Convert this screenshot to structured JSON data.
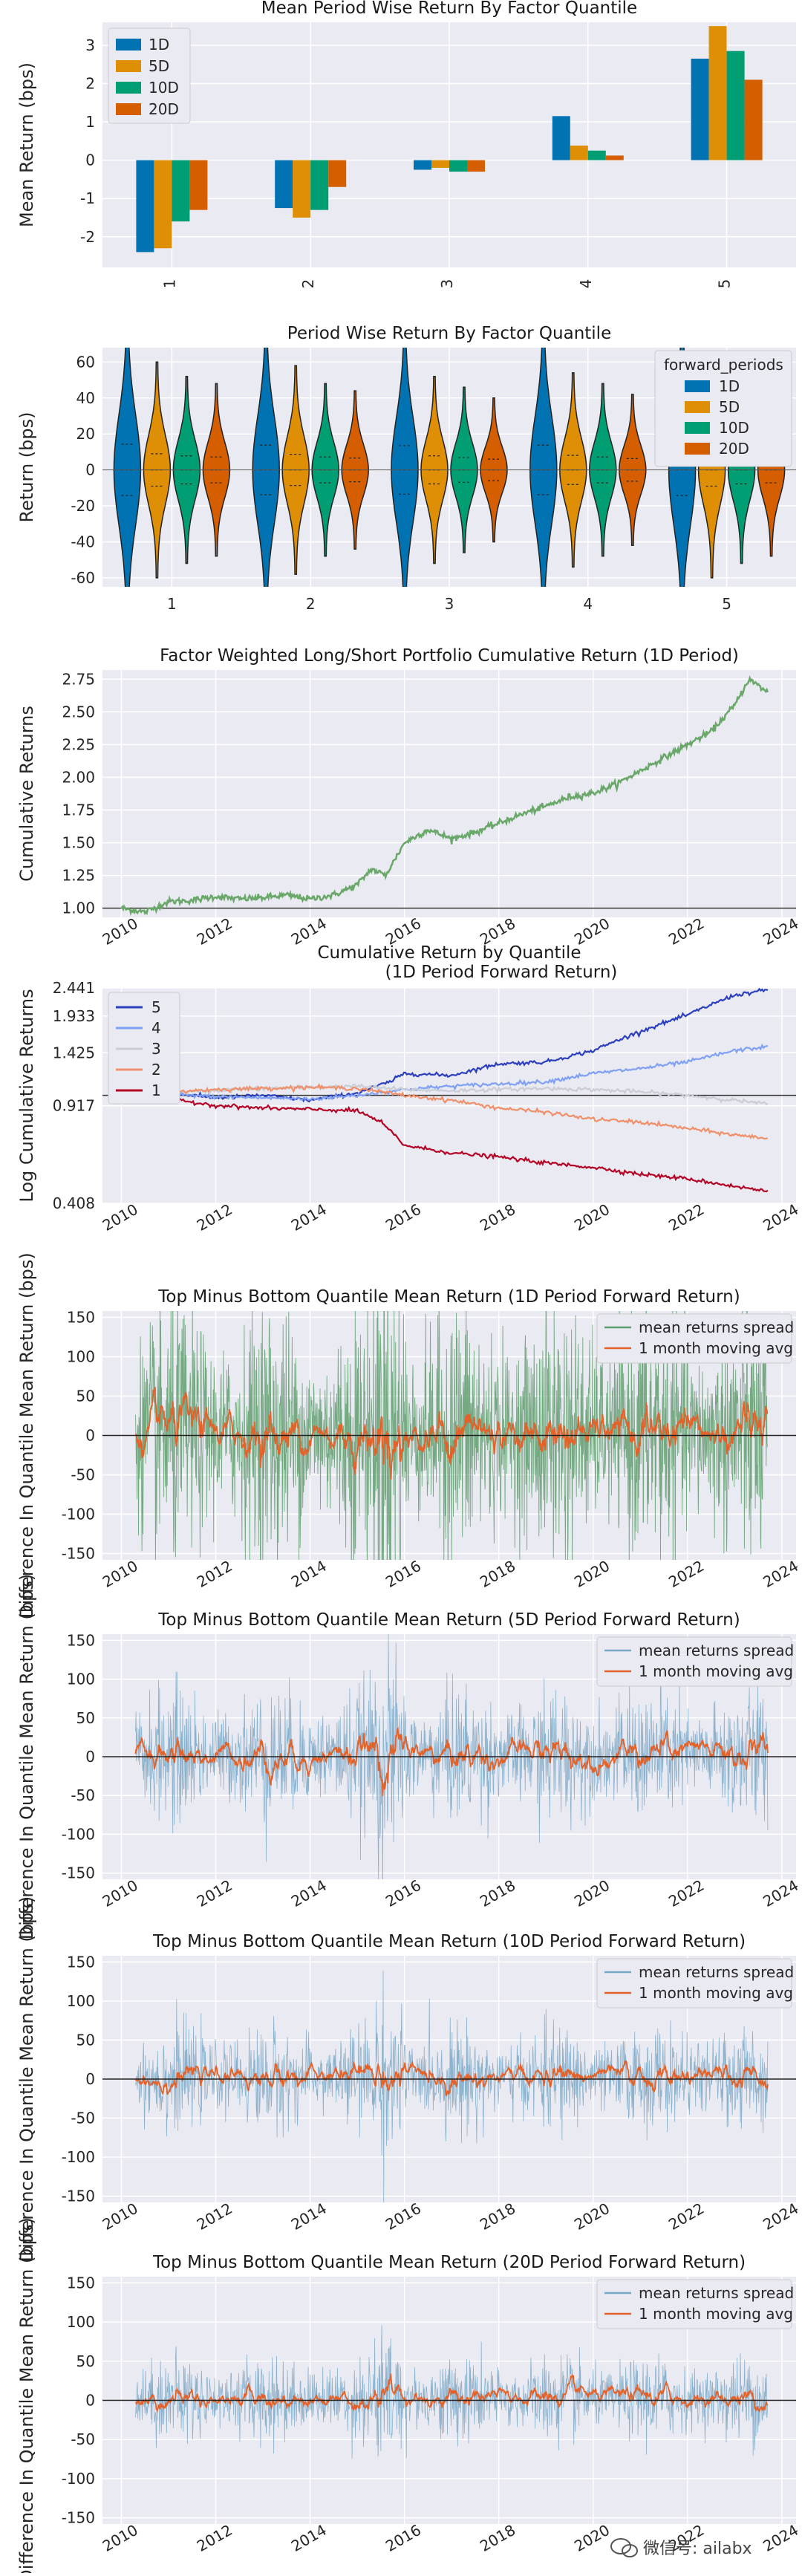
{
  "colors": {
    "1D": "#0173b2",
    "5D": "#de8f05",
    "10D": "#029e73",
    "20D": "#d55e00",
    "cum1d": "#6aa86a",
    "q5": "#2c3fbf",
    "q4": "#7fa0f5",
    "q3": "#c9cdd6",
    "q2": "#f0906a",
    "q1": "#b40426",
    "spread": "#7aa8c7",
    "spread1d": "#5f9e6e",
    "mavg": "#e3622a"
  },
  "watermark": {
    "icon": "wechat-icon",
    "text": "微信号: ailabx"
  },
  "charts": [
    {
      "chart_data": {
        "type": "bar",
        "title": "Mean Period Wise Return By Factor Quantile",
        "ylabel": "Mean Return (bps)",
        "xlabel": "",
        "categories": [
          "1",
          "2",
          "3",
          "4",
          "5"
        ],
        "ylim": [
          -2.8,
          3.6
        ],
        "yticks": [
          -2,
          -1,
          0,
          1,
          2,
          3
        ],
        "grid": true,
        "legend": "top-left",
        "series": [
          {
            "name": "1D",
            "values": [
              -2.4,
              -1.25,
              -0.25,
              1.15,
              2.65
            ]
          },
          {
            "name": "5D",
            "values": [
              -2.3,
              -1.5,
              -0.2,
              0.38,
              3.5
            ]
          },
          {
            "name": "10D",
            "values": [
              -1.6,
              -1.3,
              -0.3,
              0.25,
              2.85
            ]
          },
          {
            "name": "20D",
            "values": [
              -1.3,
              -0.7,
              -0.3,
              0.12,
              2.1
            ]
          }
        ]
      }
    },
    {
      "chart_data": {
        "type": "violin",
        "title": "Period Wise Return By Factor Quantile",
        "ylabel": "Return (bps)",
        "xlabel": "",
        "categories": [
          "1",
          "2",
          "3",
          "4",
          "5"
        ],
        "ylim": [
          -65,
          68
        ],
        "yticks": [
          -60,
          -40,
          -20,
          0,
          20,
          40,
          60
        ],
        "grid": true,
        "legend": "top-right",
        "legend_title": "forward_periods",
        "series": [
          {
            "name": "1D",
            "spread": [
              95,
              92,
              90,
              92,
              95
            ]
          },
          {
            "name": "5D",
            "spread": [
              60,
              58,
              52,
              54,
              60
            ]
          },
          {
            "name": "10D",
            "spread": [
              52,
              48,
              46,
              48,
              52
            ]
          },
          {
            "name": "20D",
            "spread": [
              48,
              44,
              40,
              42,
              48
            ]
          }
        ]
      }
    },
    {
      "chart_data": {
        "type": "line",
        "title": "Factor Weighted Long/Short Portfolio Cumulative Return (1D Period)",
        "ylabel": "Cumulative Returns",
        "xlabel": "",
        "xlim": [
          2009.6,
          2024.3
        ],
        "xticks": [
          "2010",
          "2012",
          "2014",
          "2016",
          "2018",
          "2020",
          "2022",
          "2024"
        ],
        "ylim": [
          0.93,
          2.82
        ],
        "yticks": [
          "1.00",
          "1.25",
          "1.50",
          "1.75",
          "2.00",
          "2.25",
          "2.50",
          "2.75"
        ],
        "hline": 1.0,
        "grid": true,
        "series": [
          {
            "name": "",
            "x": [
              2010.0,
              2010.5,
              2011.0,
              2011.5,
              2012.0,
              2012.5,
              2013.0,
              2013.5,
              2014.0,
              2014.5,
              2015.0,
              2015.3,
              2015.6,
              2016.0,
              2016.5,
              2017.0,
              2017.5,
              2018.0,
              2018.5,
              2019.0,
              2019.5,
              2020.0,
              2020.5,
              2021.0,
              2021.5,
              2022.0,
              2022.5,
              2023.0,
              2023.3,
              2023.7
            ],
            "y": [
              1.0,
              0.97,
              1.05,
              1.06,
              1.09,
              1.07,
              1.08,
              1.1,
              1.07,
              1.1,
              1.18,
              1.3,
              1.25,
              1.5,
              1.6,
              1.53,
              1.58,
              1.65,
              1.72,
              1.78,
              1.85,
              1.88,
              1.95,
              2.05,
              2.15,
              2.25,
              2.35,
              2.55,
              2.75,
              2.65
            ]
          }
        ]
      }
    },
    {
      "chart_data": {
        "type": "line",
        "title": "Cumulative Return by Quantile\n(1D Period Forward Return)",
        "ylabel": "Log Cumulative Returns",
        "xlabel": "",
        "xlim": [
          2009.6,
          2024.3
        ],
        "xticks": [
          "2010",
          "2012",
          "2014",
          "2016",
          "2018",
          "2020",
          "2022",
          "2024"
        ],
        "ylim": [
          0.408,
          2.441
        ],
        "yticks": [
          "0.408",
          "0.917",
          "1.425",
          "1.933",
          "2.441"
        ],
        "log_scale": true,
        "hline": 1.0,
        "grid": true,
        "legend": "top-left",
        "series": [
          {
            "name": "5",
            "x": [
              2010.2,
              2011,
              2012,
              2013,
              2014,
              2015,
              2015.7,
              2016,
              2017,
              2018,
              2019,
              2020,
              2021,
              2022,
              2023,
              2023.7
            ],
            "y": [
              1.0,
              1.02,
              0.98,
              1.0,
              0.96,
              1.02,
              1.12,
              1.2,
              1.18,
              1.3,
              1.32,
              1.45,
              1.7,
              1.95,
              2.3,
              2.4
            ]
          },
          {
            "name": "4",
            "x": [
              2010.2,
              2011,
              2012,
              2013,
              2014,
              2015,
              2016,
              2017,
              2018,
              2019,
              2020,
              2021,
              2022,
              2023,
              2023.7
            ],
            "y": [
              1.0,
              1.01,
              0.99,
              0.98,
              0.97,
              1.0,
              1.05,
              1.08,
              1.1,
              1.12,
              1.2,
              1.25,
              1.32,
              1.45,
              1.5
            ]
          },
          {
            "name": "3",
            "x": [
              2010.2,
              2011,
              2012,
              2013,
              2014,
              2015,
              2016,
              2017,
              2018,
              2019,
              2020,
              2021,
              2022,
              2023,
              2023.7
            ],
            "y": [
              1.0,
              1.02,
              1.04,
              1.06,
              1.07,
              1.08,
              1.05,
              1.04,
              1.05,
              1.06,
              1.05,
              1.03,
              1.0,
              0.96,
              0.93
            ]
          },
          {
            "name": "2",
            "x": [
              2010.2,
              2011,
              2012,
              2013,
              2014,
              2015,
              2016,
              2017,
              2018,
              2019,
              2020,
              2021,
              2022,
              2023,
              2023.7
            ],
            "y": [
              1.0,
              1.03,
              1.05,
              1.06,
              1.07,
              1.06,
              1.0,
              0.96,
              0.9,
              0.87,
              0.82,
              0.8,
              0.76,
              0.72,
              0.7
            ]
          },
          {
            "name": "1",
            "x": [
              2010.2,
              2011,
              2012,
              2013,
              2014,
              2015,
              2015.5,
              2016,
              2017,
              2018,
              2019,
              2020,
              2021,
              2022,
              2023,
              2023.7
            ],
            "y": [
              1.0,
              0.97,
              0.92,
              0.9,
              0.89,
              0.88,
              0.8,
              0.66,
              0.62,
              0.6,
              0.57,
              0.55,
              0.52,
              0.5,
              0.47,
              0.45
            ]
          }
        ]
      }
    },
    {
      "chart_data": {
        "type": "line",
        "title": "Top Minus Bottom Quantile Mean Return (1D Period Forward Return)",
        "ylabel": "Difference In Quantile Mean Return (bps)",
        "xlabel": "",
        "xlim": [
          2009.6,
          2024.3
        ],
        "xticks": [
          "2010",
          "2012",
          "2014",
          "2016",
          "2018",
          "2020",
          "2022",
          "2024"
        ],
        "ylim": [
          -158,
          158
        ],
        "yticks": [
          -150,
          -100,
          -50,
          0,
          50,
          100,
          150
        ],
        "hline": 0,
        "grid": true,
        "legend": "top-right",
        "legend_labels": [
          "mean returns spread",
          "1 month moving avg"
        ],
        "spread_amplitude": 150,
        "mavg_amplitude": 35
      }
    },
    {
      "chart_data": {
        "type": "line",
        "title": "Top Minus Bottom Quantile Mean Return (5D Period Forward Return)",
        "ylabel": "Difference In Quantile Mean Return (bps)",
        "xlabel": "",
        "xlim": [
          2009.6,
          2024.3
        ],
        "xticks": [
          "2010",
          "2012",
          "2014",
          "2016",
          "2018",
          "2020",
          "2022",
          "2024"
        ],
        "ylim": [
          -158,
          158
        ],
        "yticks": [
          -150,
          -100,
          -50,
          0,
          50,
          100,
          150
        ],
        "hline": 0,
        "grid": true,
        "legend": "top-right",
        "legend_labels": [
          "mean returns spread",
          "1 month moving avg"
        ],
        "spread_amplitude": 80,
        "mavg_amplitude": 25
      }
    },
    {
      "chart_data": {
        "type": "line",
        "title": "Top Minus Bottom Quantile Mean Return (10D Period Forward Return)",
        "ylabel": "Difference In Quantile Mean Return (bps)",
        "xlabel": "",
        "xlim": [
          2009.6,
          2024.3
        ],
        "xticks": [
          "2010",
          "2012",
          "2014",
          "2016",
          "2018",
          "2020",
          "2022",
          "2024"
        ],
        "ylim": [
          -158,
          158
        ],
        "yticks": [
          -150,
          -100,
          -50,
          0,
          50,
          100,
          150
        ],
        "hline": 0,
        "grid": true,
        "legend": "top-right",
        "legend_labels": [
          "mean returns spread",
          "1 month moving avg"
        ],
        "spread_amplitude": 60,
        "mavg_amplitude": 18
      }
    },
    {
      "chart_data": {
        "type": "line",
        "title": "Top Minus Bottom Quantile Mean Return (20D Period Forward Return)",
        "ylabel": "Difference In Quantile Mean Return (bps)",
        "xlabel": "",
        "xlim": [
          2009.6,
          2024.3
        ],
        "xticks": [
          "2010",
          "2012",
          "2014",
          "2016",
          "2018",
          "2020",
          "2022",
          "2024"
        ],
        "ylim": [
          -158,
          158
        ],
        "yticks": [
          -150,
          -100,
          -50,
          0,
          50,
          100,
          150
        ],
        "hline": 0,
        "grid": true,
        "legend": "top-right",
        "legend_labels": [
          "mean returns spread",
          "1 month moving avg"
        ],
        "spread_amplitude": 50,
        "mavg_amplitude": 15
      }
    }
  ]
}
